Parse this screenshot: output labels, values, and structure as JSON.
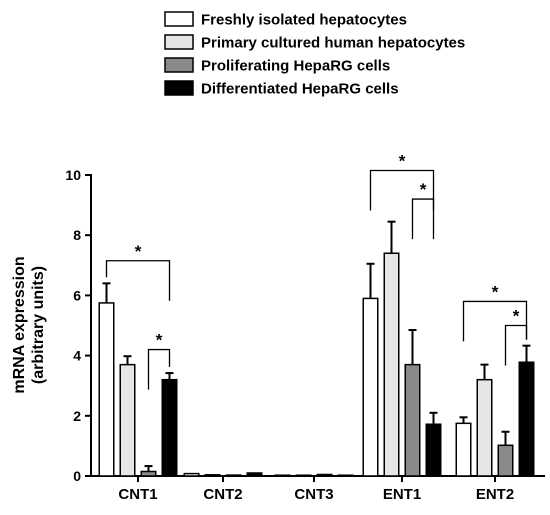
{
  "chart_data": {
    "type": "bar",
    "ylabel": [
      "mRNA expression",
      "(arbitrary units)"
    ],
    "ylim": [
      0,
      10
    ],
    "yticks": [
      "0",
      "2",
      "4",
      "6",
      "8",
      "10"
    ],
    "categories": [
      "CNT1",
      "CNT2",
      "CNT3",
      "ENT1",
      "ENT2"
    ],
    "series": [
      {
        "name": "Freshly isolated hepatocytes",
        "color": "#ffffff",
        "values": [
          5.75,
          0.08,
          0.01,
          5.9,
          1.75
        ],
        "errors": [
          0.65,
          0.04,
          0.01,
          1.15,
          0.2
        ]
      },
      {
        "name": "Primary cultured human hepatocytes",
        "color": "#e6e6e6",
        "values": [
          3.7,
          0.04,
          0.01,
          7.4,
          3.2
        ],
        "errors": [
          0.28,
          0.02,
          0.01,
          1.05,
          0.5
        ]
      },
      {
        "name": "Proliferating HepaRG cells",
        "color": "#8a8a8a",
        "values": [
          0.15,
          0.03,
          0.05,
          3.7,
          1.02
        ],
        "errors": [
          0.18,
          0.02,
          0.02,
          1.15,
          0.45
        ]
      },
      {
        "name": "Differentiated HepaRG cells",
        "color": "#000000",
        "values": [
          3.2,
          0.1,
          0.01,
          1.72,
          3.78
        ],
        "errors": [
          0.22,
          0.04,
          0.01,
          0.38,
          0.55
        ]
      }
    ],
    "significance": [
      {
        "category": 0,
        "from_series": 0,
        "to_series": 3,
        "label": "*",
        "y": 7.15
      },
      {
        "category": 0,
        "from_series": 2,
        "to_series": 3,
        "label": "*",
        "y": 4.2
      },
      {
        "category": 3,
        "from_series": 0,
        "to_series": 3,
        "label": "*",
        "y": 10.15
      },
      {
        "category": 3,
        "from_series": 2,
        "to_series": 3,
        "label": "*",
        "y": 9.2
      },
      {
        "category": 4,
        "from_series": 0,
        "to_series": 3,
        "label": "*",
        "y": 5.8
      },
      {
        "category": 4,
        "from_series": 2,
        "to_series": 3,
        "label": "*",
        "y": 5.0
      }
    ],
    "legend_position": "top"
  }
}
